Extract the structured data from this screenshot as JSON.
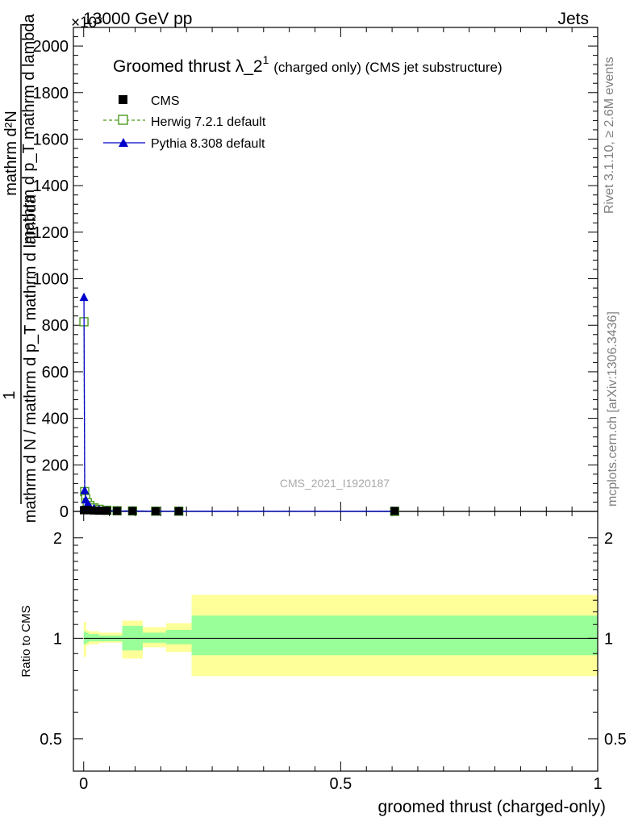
{
  "header": {
    "left": "13000 GeV pp",
    "right": "Jets",
    "exponent": "×10³"
  },
  "side": {
    "rivet": "Rivet 3.1.10, ≥ 2.6M events",
    "mcplots": "mcplots.cern.ch [arXiv:1306.3436]"
  },
  "watermark": "CMS_2021_I1920187",
  "title": {
    "main": "Groomed thrust λ_2",
    "sup": "1",
    "note": "(charged only) (CMS jet substructure)"
  },
  "legend": [
    {
      "label": "CMS"
    },
    {
      "label": "Herwig 7.2.1 default"
    },
    {
      "label": "Pythia 8.308 default"
    }
  ],
  "colors": {
    "cms": "#000000",
    "herwig": "#4c9a1c",
    "pythia": "#0000cc",
    "band_inner": "#99ff99",
    "band_outer": "#ffff99"
  },
  "axes": {
    "top_ylabel_num": "1",
    "top_ylabel_den": "mathrm d N / mathrm d p_T mathrm d lambda",
    "top_ylabel_top": "mathrm d²N",
    "top_ylabel_mid": "mathrm d p_T mathrm d lambda",
    "bottom_ylabel": "Ratio to CMS",
    "xlabel": "groomed thrust (charged-only)"
  },
  "chart_data": [
    {
      "type": "scatter",
      "panel": "main",
      "xlim": [
        -0.02,
        1.0
      ],
      "ylim": [
        0,
        2080
      ],
      "y_multiplier": "×10³",
      "x_ticks": [
        0,
        0.5,
        1
      ],
      "x_tick_labels": [
        "0",
        "0.5",
        "1"
      ],
      "y_ticks": [
        0,
        200,
        400,
        600,
        800,
        1000,
        1200,
        1400,
        1600,
        1800,
        2000
      ],
      "y_tick_labels": [
        "0",
        "200",
        "400",
        "600",
        "800",
        "1000",
        "1200",
        "1400",
        "1600",
        "1800",
        "2000"
      ],
      "series": [
        {
          "name": "CMS",
          "x": [
            0.0005,
            0.002,
            0.004,
            0.007,
            0.012,
            0.02,
            0.03,
            0.045,
            0.065,
            0.095,
            0.14,
            0.185,
            0.605
          ],
          "y": [
            5,
            6,
            6,
            5,
            5,
            4,
            3,
            3,
            2,
            2,
            1,
            1,
            2
          ]
        },
        {
          "name": "Herwig 7.2.1 default",
          "x": [
            0.0005,
            0.002,
            0.004,
            0.007,
            0.012,
            0.02,
            0.03,
            0.045,
            0.065,
            0.095,
            0.14,
            0.185,
            0.605
          ],
          "y": [
            815,
            85,
            55,
            38,
            25,
            15,
            9,
            5,
            3,
            2,
            1,
            1,
            0.2
          ]
        },
        {
          "name": "Pythia 8.308 default",
          "x": [
            0.0005,
            0.002,
            0.004,
            0.007,
            0.012,
            0.02,
            0.03,
            0.045,
            0.065,
            0.095,
            0.14,
            0.185,
            0.605
          ],
          "y": [
            920,
            90,
            50,
            30,
            20,
            12,
            7,
            4,
            2,
            1.5,
            1,
            0.8,
            0.2
          ]
        }
      ]
    },
    {
      "type": "area",
      "panel": "ratio",
      "xlim": [
        -0.02,
        1.0
      ],
      "ylim": [
        0.4,
        2.4
      ],
      "log_scale_y": true,
      "y_ticks": [
        0.5,
        1,
        2
      ],
      "y_tick_labels": [
        "0.5",
        "1",
        "2"
      ],
      "bin_edges": [
        0.0,
        0.005,
        0.01,
        0.03,
        0.075,
        0.115,
        0.16,
        0.21,
        1.0
      ],
      "band_inner_low": [
        0.96,
        0.97,
        0.98,
        0.98,
        0.92,
        0.97,
        0.96,
        0.89
      ],
      "band_inner_high": [
        1.05,
        1.04,
        1.03,
        1.02,
        1.09,
        1.04,
        1.06,
        1.17
      ],
      "band_outer_low": [
        0.88,
        0.95,
        0.96,
        0.97,
        0.87,
        0.94,
        0.91,
        0.77
      ],
      "band_outer_high": [
        1.12,
        1.06,
        1.05,
        1.04,
        1.13,
        1.08,
        1.11,
        1.35
      ],
      "reference": 1
    }
  ]
}
